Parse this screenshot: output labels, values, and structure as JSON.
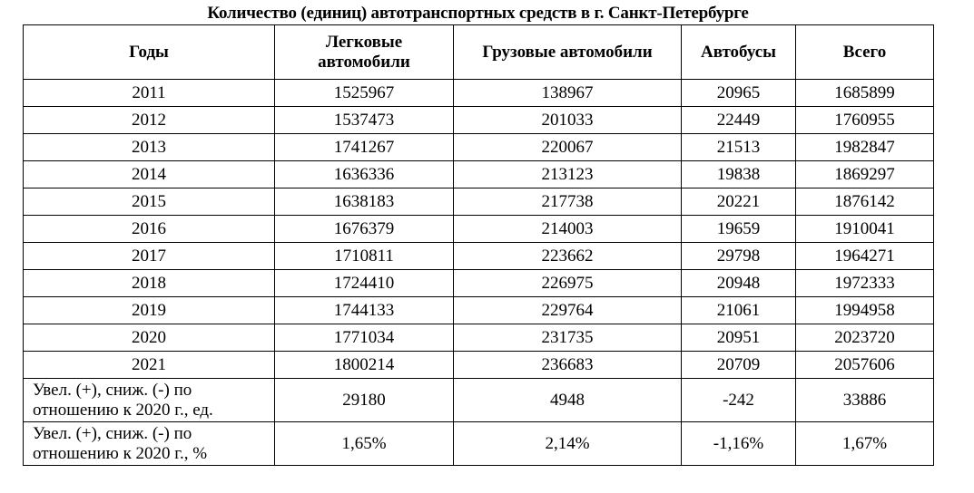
{
  "document": {
    "caption": "Количество (единиц) автотранспортных средств в г. Санкт-Петербурге"
  },
  "table": {
    "headers": [
      {
        "line1": "Годы",
        "line2": ""
      },
      {
        "line1": "Легковые",
        "line2": "автомобили"
      },
      {
        "line1": "Грузовые автомобили",
        "line2": ""
      },
      {
        "line1": "Автобусы",
        "line2": ""
      },
      {
        "line1": "Всего",
        "line2": ""
      }
    ],
    "rows": [
      [
        "2011",
        "1525967",
        "138967",
        "20965",
        "1685899"
      ],
      [
        "2012",
        "1537473",
        "201033",
        "22449",
        "1760955"
      ],
      [
        "2013",
        "1741267",
        "220067",
        "21513",
        "1982847"
      ],
      [
        "2014",
        "1636336",
        "213123",
        "19838",
        "1869297"
      ],
      [
        "2015",
        "1638183",
        "217738",
        "20221",
        "1876142"
      ],
      [
        "2016",
        "1676379",
        "214003",
        "19659",
        "1910041"
      ],
      [
        "2017",
        "1710811",
        "223662",
        "29798",
        "1964271"
      ],
      [
        "2018",
        "1724410",
        "226975",
        "20948",
        "1972333"
      ],
      [
        "2019",
        "1744133",
        "229764",
        "21061",
        "1994958"
      ],
      [
        "2020",
        "1771034",
        "231735",
        "20951",
        "2023720"
      ],
      [
        "2021",
        "1800214",
        "236683",
        "20709",
        "2057606"
      ]
    ],
    "summary": [
      {
        "label_line1": "Увел. (+), сниж. (-) по",
        "label_line2": "отношению к 2020 г., ед.",
        "values": [
          "29180",
          "4948",
          "-242",
          "33886"
        ]
      },
      {
        "label_line1": "Увел. (+), сниж. (-) по",
        "label_line2": "отношению к 2020 г., %",
        "values": [
          "1,65%",
          "2,14%",
          "-1,16%",
          "1,67%"
        ]
      }
    ]
  }
}
